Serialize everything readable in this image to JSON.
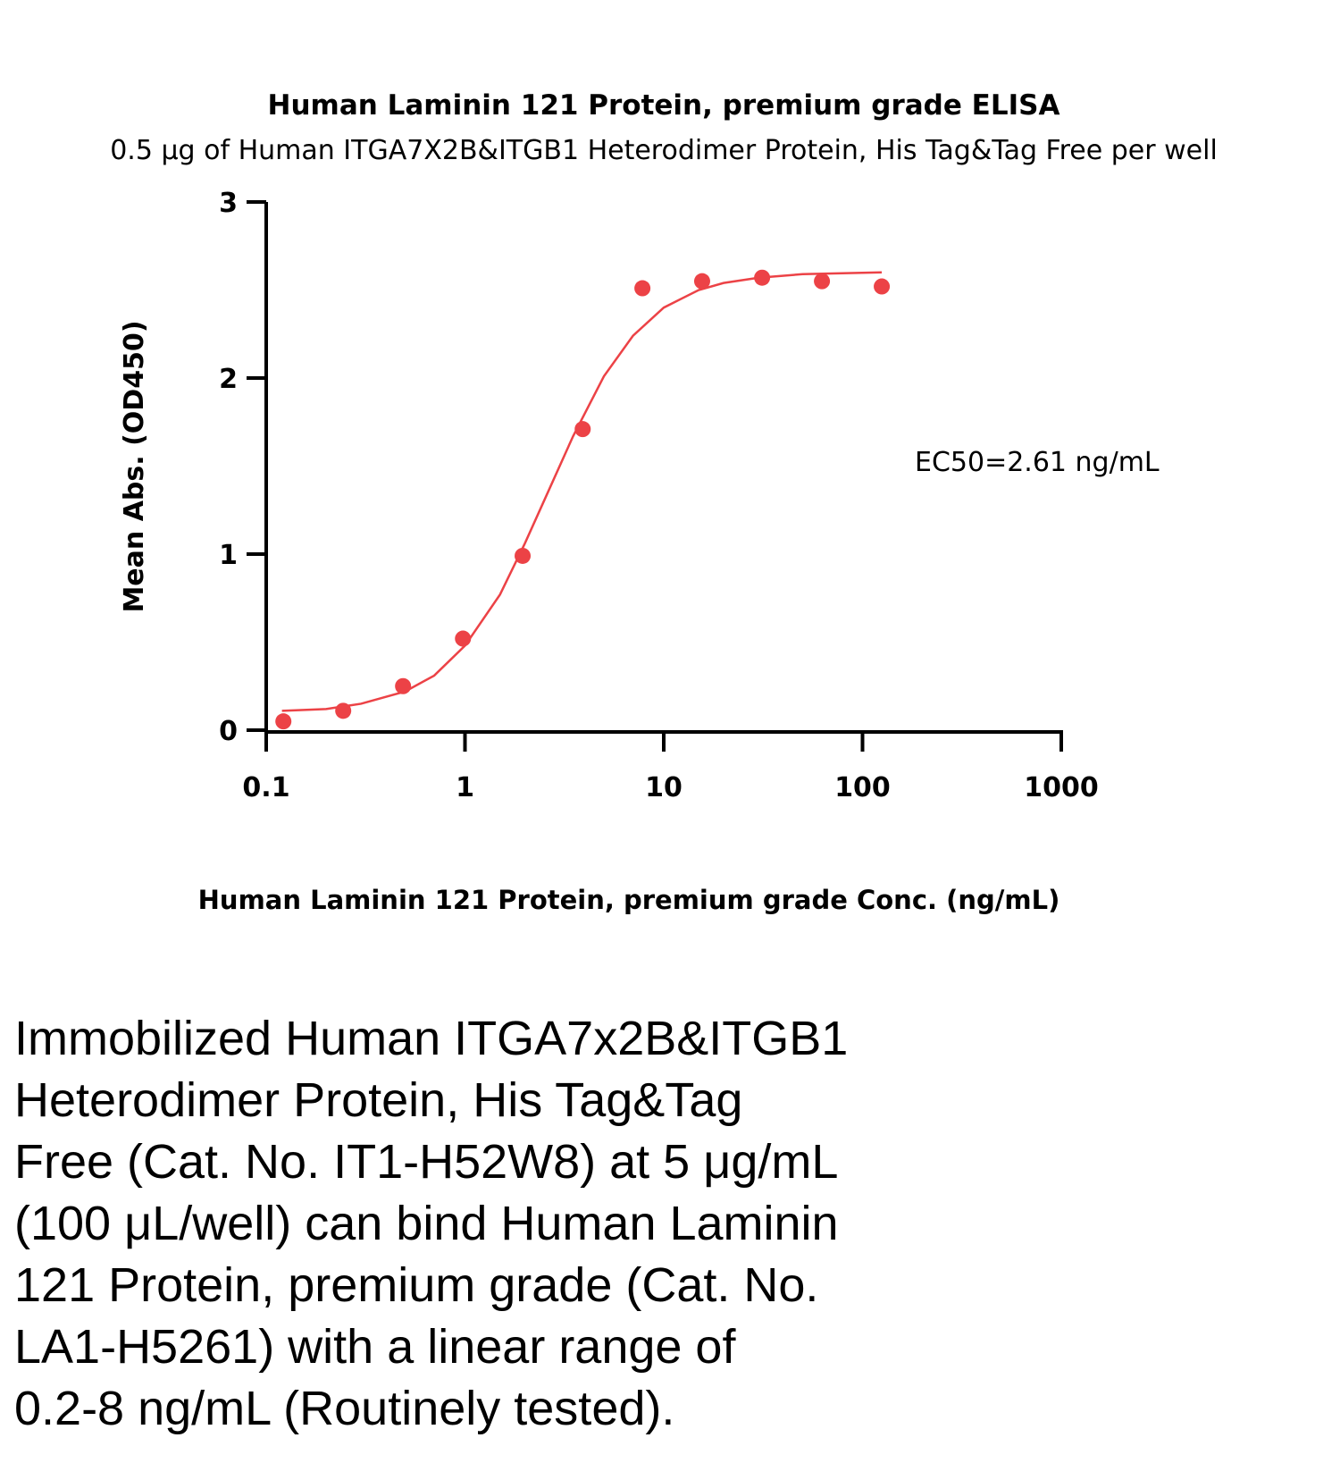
{
  "chart_data": {
    "type": "scatter",
    "title": "Human Laminin 121 Protein, premium grade ELISA",
    "subtitle": "0.5 μg of Human ITGA7X2B&ITGB1 Heterodimer Protein, His Tag&Tag Free per well",
    "x_label": "Human Laminin 121 Protein, premium grade Conc. (ng/mL)",
    "y_label": "Mean Abs. (OD450)",
    "annotation": "EC50=2.61 ng/mL",
    "x": [
      0.122,
      0.244,
      0.488,
      0.977,
      1.95,
      3.91,
      7.81,
      15.6,
      31.25,
      62.5,
      125
    ],
    "values": [
      0.05,
      0.11,
      0.25,
      0.52,
      0.99,
      1.71,
      2.51,
      2.55,
      2.57,
      2.55,
      2.52
    ],
    "color": "#ec4246",
    "fit": {
      "x": [
        0.12,
        0.2,
        0.3,
        0.5,
        0.7,
        1,
        1.5,
        2,
        2.61,
        3.5,
        5,
        7,
        10,
        15,
        20,
        30,
        50,
        125
      ],
      "values": [
        0.11,
        0.12,
        0.15,
        0.22,
        0.31,
        0.48,
        0.77,
        1.06,
        1.35,
        1.67,
        2.01,
        2.24,
        2.4,
        2.5,
        2.54,
        2.57,
        2.59,
        2.6
      ]
    },
    "xscale": "log",
    "xlim": [
      0.1,
      1000
    ],
    "xticks": [
      0.1,
      1,
      10,
      100,
      1000
    ],
    "ylim": [
      0,
      3
    ],
    "yticks": [
      0,
      1,
      2,
      3
    ],
    "caption": [
      "Immobilized Human ITGA7x2B&ITGB1",
      "Heterodimer Protein, His Tag&Tag",
      "Free (Cat. No. IT1-H52W8) at 5 μg/mL",
      "(100 μL/well) can bind Human Laminin",
      "121 Protein, premium grade (Cat. No.",
      "LA1-H5261) with a linear range of",
      "0.2-8 ng/mL (Routinely tested)."
    ]
  }
}
